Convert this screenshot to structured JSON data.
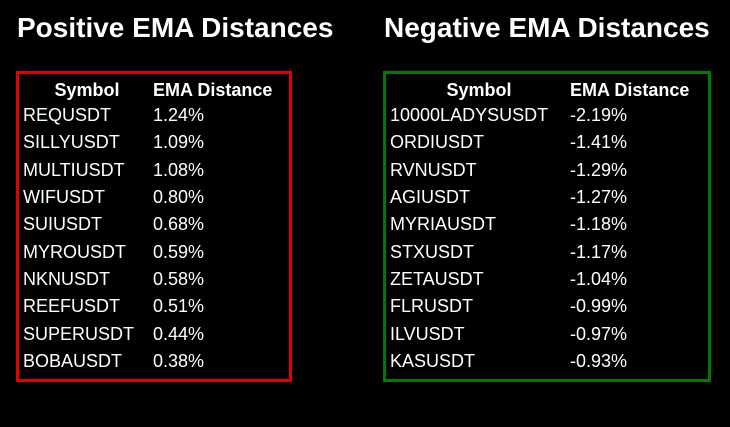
{
  "positive": {
    "title": "Positive EMA Distances",
    "border_color": "#e00000",
    "headers": {
      "symbol": "Symbol",
      "distance": "EMA Distance"
    },
    "rows": [
      {
        "symbol": "REQUSDT",
        "distance": "1.24%"
      },
      {
        "symbol": "SILLYUSDT",
        "distance": "1.09%"
      },
      {
        "symbol": "MULTIUSDT",
        "distance": "1.08%"
      },
      {
        "symbol": "WIFUSDT",
        "distance": "0.80%"
      },
      {
        "symbol": "SUIUSDT",
        "distance": "0.68%"
      },
      {
        "symbol": "MYROUSDT",
        "distance": "0.59%"
      },
      {
        "symbol": "NKNUSDT",
        "distance": "0.58%"
      },
      {
        "symbol": "REEFUSDT",
        "distance": "0.51%"
      },
      {
        "symbol": "SUPERUSDT",
        "distance": "0.44%"
      },
      {
        "symbol": "BOBAUSDT",
        "distance": "0.38%"
      }
    ]
  },
  "negative": {
    "title": "Negative EMA Distances",
    "border_color": "#007a00",
    "headers": {
      "symbol": "Symbol",
      "distance": "EMA Distance"
    },
    "rows": [
      {
        "symbol": "10000LADYSUSDT",
        "distance": "-2.19%"
      },
      {
        "symbol": "ORDIUSDT",
        "distance": "-1.41%"
      },
      {
        "symbol": "RVNUSDT",
        "distance": "-1.29%"
      },
      {
        "symbol": "AGIUSDT",
        "distance": "-1.27%"
      },
      {
        "symbol": "MYRIAUSDT",
        "distance": "-1.18%"
      },
      {
        "symbol": "STXUSDT",
        "distance": "-1.17%"
      },
      {
        "symbol": "ZETAUSDT",
        "distance": "-1.04%"
      },
      {
        "symbol": "FLRUSDT",
        "distance": "-0.99%"
      },
      {
        "symbol": "ILVUSDT",
        "distance": "-0.97%"
      },
      {
        "symbol": "KASUSDT",
        "distance": "-0.93%"
      }
    ]
  }
}
